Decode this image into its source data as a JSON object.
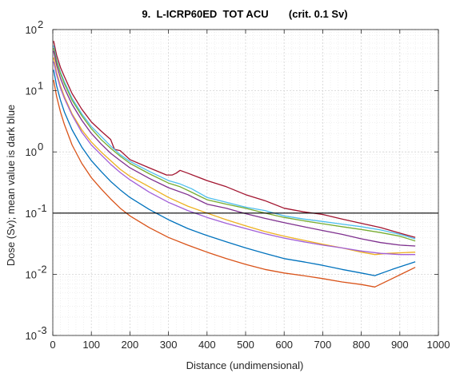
{
  "chart_data": {
    "type": "line",
    "title": "9.  L-ICRP60ED  TOT ACU       (crit. 0.1 Sv)",
    "xlabel": "Distance (undimensional)",
    "ylabel": "Dose (Sv); mean value is dark blue",
    "xlim": [
      0,
      1000
    ],
    "ylim": [
      0.001,
      100
    ],
    "yscale": "log",
    "grid": true,
    "minor_grid": true,
    "xticks": [
      0,
      100,
      200,
      300,
      400,
      500,
      600,
      700,
      800,
      900,
      1000
    ],
    "yticks": [
      0.001,
      0.01,
      0.1,
      1,
      10,
      100
    ],
    "yticklabels": [
      {
        "base": "10",
        "exp": "-3"
      },
      {
        "base": "10",
        "exp": "-2"
      },
      {
        "base": "10",
        "exp": "-1"
      },
      {
        "base": "10",
        "exp": "0"
      },
      {
        "base": "10",
        "exp": "1"
      },
      {
        "base": "10",
        "exp": "2"
      }
    ],
    "criterion_line": {
      "y": 0.1,
      "color": "#000000"
    },
    "series": [
      {
        "color": "#A2142F",
        "points": [
          [
            2,
            65
          ],
          [
            10,
            38
          ],
          [
            20,
            24
          ],
          [
            30,
            17
          ],
          [
            50,
            9
          ],
          [
            75,
            5
          ],
          [
            100,
            3.1
          ],
          [
            125,
            2.2
          ],
          [
            150,
            1.6
          ],
          [
            160,
            1.1
          ],
          [
            175,
            1.05
          ],
          [
            200,
            0.75
          ],
          [
            250,
            0.55
          ],
          [
            295,
            0.42
          ],
          [
            310,
            0.42
          ],
          [
            320,
            0.45
          ],
          [
            330,
            0.5
          ],
          [
            350,
            0.45
          ],
          [
            400,
            0.34
          ],
          [
            450,
            0.27
          ],
          [
            500,
            0.2
          ],
          [
            550,
            0.16
          ],
          [
            600,
            0.12
          ],
          [
            650,
            0.105
          ],
          [
            700,
            0.095
          ],
          [
            750,
            0.08
          ],
          [
            800,
            0.068
          ],
          [
            850,
            0.058
          ],
          [
            900,
            0.047
          ],
          [
            940,
            0.04
          ]
        ]
      },
      {
        "color": "#4DBEEE",
        "points": [
          [
            2,
            55
          ],
          [
            10,
            32
          ],
          [
            20,
            20
          ],
          [
            30,
            14
          ],
          [
            50,
            7.5
          ],
          [
            75,
            4.2
          ],
          [
            100,
            2.6
          ],
          [
            125,
            1.8
          ],
          [
            150,
            1.25
          ],
          [
            175,
            0.9
          ],
          [
            200,
            0.7
          ],
          [
            250,
            0.48
          ],
          [
            300,
            0.34
          ],
          [
            330,
            0.3
          ],
          [
            360,
            0.25
          ],
          [
            400,
            0.18
          ],
          [
            450,
            0.15
          ],
          [
            500,
            0.125
          ],
          [
            550,
            0.11
          ],
          [
            600,
            0.09
          ],
          [
            650,
            0.08
          ],
          [
            700,
            0.073
          ],
          [
            750,
            0.066
          ],
          [
            800,
            0.06
          ],
          [
            850,
            0.053
          ],
          [
            900,
            0.045
          ],
          [
            940,
            0.038
          ]
        ]
      },
      {
        "color": "#77AC30",
        "points": [
          [
            2,
            50
          ],
          [
            10,
            30
          ],
          [
            20,
            19
          ],
          [
            30,
            13
          ],
          [
            50,
            7
          ],
          [
            75,
            3.9
          ],
          [
            100,
            2.4
          ],
          [
            125,
            1.6
          ],
          [
            150,
            1.15
          ],
          [
            175,
            0.85
          ],
          [
            200,
            0.65
          ],
          [
            250,
            0.44
          ],
          [
            300,
            0.31
          ],
          [
            330,
            0.27
          ],
          [
            360,
            0.22
          ],
          [
            400,
            0.165
          ],
          [
            450,
            0.14
          ],
          [
            500,
            0.12
          ],
          [
            550,
            0.1
          ],
          [
            600,
            0.085
          ],
          [
            650,
            0.075
          ],
          [
            700,
            0.067
          ],
          [
            750,
            0.06
          ],
          [
            800,
            0.054
          ],
          [
            850,
            0.048
          ],
          [
            900,
            0.042
          ],
          [
            940,
            0.035
          ]
        ]
      },
      {
        "color": "#7E2F8E",
        "points": [
          [
            2,
            45
          ],
          [
            10,
            26
          ],
          [
            20,
            16
          ],
          [
            30,
            11
          ],
          [
            50,
            6
          ],
          [
            75,
            3.3
          ],
          [
            100,
            2
          ],
          [
            125,
            1.35
          ],
          [
            150,
            0.95
          ],
          [
            175,
            0.72
          ],
          [
            200,
            0.55
          ],
          [
            250,
            0.37
          ],
          [
            300,
            0.26
          ],
          [
            350,
            0.2
          ],
          [
            400,
            0.14
          ],
          [
            450,
            0.12
          ],
          [
            500,
            0.098
          ],
          [
            550,
            0.082
          ],
          [
            600,
            0.07
          ],
          [
            650,
            0.06
          ],
          [
            700,
            0.052
          ],
          [
            750,
            0.045
          ],
          [
            800,
            0.038
          ],
          [
            850,
            0.033
          ],
          [
            900,
            0.03
          ],
          [
            940,
            0.029
          ]
        ]
      },
      {
        "color": "#EDB120",
        "points": [
          [
            2,
            35
          ],
          [
            10,
            20
          ],
          [
            20,
            12
          ],
          [
            30,
            8
          ],
          [
            50,
            4.2
          ],
          [
            75,
            2.3
          ],
          [
            100,
            1.45
          ],
          [
            125,
            1
          ],
          [
            150,
            0.72
          ],
          [
            175,
            0.52
          ],
          [
            200,
            0.4
          ],
          [
            250,
            0.27
          ],
          [
            300,
            0.18
          ],
          [
            350,
            0.13
          ],
          [
            400,
            0.1
          ],
          [
            450,
            0.078
          ],
          [
            500,
            0.062
          ],
          [
            550,
            0.05
          ],
          [
            600,
            0.042
          ],
          [
            650,
            0.036
          ],
          [
            700,
            0.031
          ],
          [
            750,
            0.027
          ],
          [
            800,
            0.023
          ],
          [
            835,
            0.021
          ],
          [
            870,
            0.022
          ],
          [
            940,
            0.023
          ]
        ]
      },
      {
        "color": "#A15FD9",
        "points": [
          [
            2,
            30
          ],
          [
            10,
            18
          ],
          [
            20,
            11
          ],
          [
            30,
            7.5
          ],
          [
            50,
            4
          ],
          [
            75,
            2.1
          ],
          [
            100,
            1.3
          ],
          [
            125,
            0.9
          ],
          [
            150,
            0.63
          ],
          [
            175,
            0.46
          ],
          [
            200,
            0.35
          ],
          [
            250,
            0.22
          ],
          [
            300,
            0.15
          ],
          [
            350,
            0.11
          ],
          [
            400,
            0.085
          ],
          [
            450,
            0.068
          ],
          [
            500,
            0.056
          ],
          [
            550,
            0.046
          ],
          [
            600,
            0.039
          ],
          [
            650,
            0.034
          ],
          [
            700,
            0.03
          ],
          [
            750,
            0.027
          ],
          [
            800,
            0.024
          ],
          [
            850,
            0.022
          ],
          [
            900,
            0.021
          ],
          [
            940,
            0.021
          ]
        ]
      },
      {
        "color": "#0072BD",
        "points": [
          [
            2,
            22
          ],
          [
            10,
            12
          ],
          [
            20,
            7
          ],
          [
            30,
            4.5
          ],
          [
            50,
            2.3
          ],
          [
            75,
            1.2
          ],
          [
            100,
            0.72
          ],
          [
            125,
            0.48
          ],
          [
            150,
            0.33
          ],
          [
            175,
            0.24
          ],
          [
            200,
            0.18
          ],
          [
            250,
            0.115
          ],
          [
            300,
            0.078
          ],
          [
            350,
            0.056
          ],
          [
            400,
            0.043
          ],
          [
            450,
            0.034
          ],
          [
            500,
            0.027
          ],
          [
            550,
            0.022
          ],
          [
            600,
            0.018
          ],
          [
            650,
            0.016
          ],
          [
            700,
            0.014
          ],
          [
            750,
            0.012
          ],
          [
            800,
            0.0105
          ],
          [
            835,
            0.0095
          ],
          [
            880,
            0.012
          ],
          [
            940,
            0.016
          ]
        ]
      },
      {
        "color": "#D95319",
        "points": [
          [
            2,
            15
          ],
          [
            10,
            8
          ],
          [
            20,
            4.5
          ],
          [
            30,
            2.8
          ],
          [
            50,
            1.3
          ],
          [
            75,
            0.65
          ],
          [
            100,
            0.38
          ],
          [
            125,
            0.25
          ],
          [
            150,
            0.17
          ],
          [
            175,
            0.12
          ],
          [
            200,
            0.09
          ],
          [
            250,
            0.058
          ],
          [
            300,
            0.04
          ],
          [
            350,
            0.03
          ],
          [
            400,
            0.023
          ],
          [
            450,
            0.018
          ],
          [
            500,
            0.0145
          ],
          [
            550,
            0.012
          ],
          [
            600,
            0.0105
          ],
          [
            650,
            0.0095
          ],
          [
            700,
            0.0085
          ],
          [
            750,
            0.0075
          ],
          [
            800,
            0.0068
          ],
          [
            835,
            0.0062
          ],
          [
            880,
            0.0085
          ],
          [
            940,
            0.013
          ]
        ]
      }
    ]
  }
}
